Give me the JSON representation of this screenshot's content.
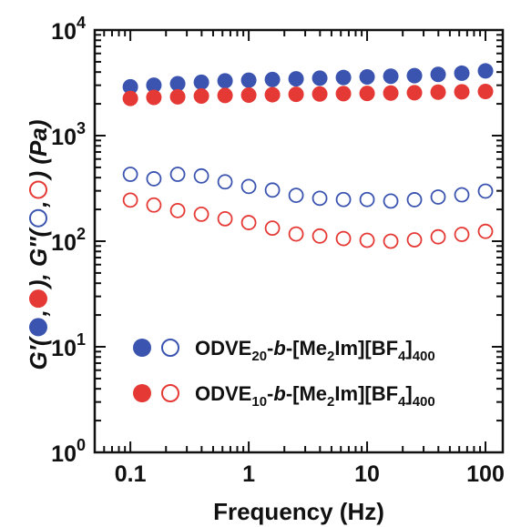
{
  "chart_data": {
    "type": "scatter",
    "xscale": "log",
    "yscale": "log",
    "xlim": [
      0.05,
      140
    ],
    "ylim": [
      1,
      10000
    ],
    "grid": false,
    "legend_position": "bottom-right",
    "xlabel": "Frequency (Hz)",
    "ylabel": {
      "g1": "G′(",
      "g2": ",",
      "g3": "), G″(",
      "g4": ",",
      "g5": ") (Pa)"
    },
    "x_tick_labels": [
      {
        "value": 0.1,
        "label": "0.1"
      },
      {
        "value": 1,
        "label": "1"
      },
      {
        "value": 10,
        "label": "10"
      },
      {
        "value": 100,
        "label": "100"
      }
    ],
    "y_tick_labels": [
      {
        "value": 1,
        "base": "10",
        "exp": "0"
      },
      {
        "value": 10,
        "base": "10",
        "exp": "1"
      },
      {
        "value": 100,
        "base": "10",
        "exp": "2"
      },
      {
        "value": 1000,
        "base": "10",
        "exp": "3"
      },
      {
        "value": 10000,
        "base": "10",
        "exp": "4"
      }
    ],
    "x": [
      0.1,
      0.158,
      0.251,
      0.398,
      0.631,
      1.0,
      1.585,
      2.512,
      3.981,
      6.31,
      10.0,
      15.85,
      25.12,
      39.81,
      63.1,
      100.0
    ],
    "series": [
      {
        "legend_id": "odve20",
        "quantity": "G'",
        "filled": true,
        "color": "#3b54b0",
        "values": [
          2900,
          3000,
          3100,
          3200,
          3300,
          3350,
          3400,
          3450,
          3500,
          3550,
          3600,
          3650,
          3700,
          3800,
          3900,
          4100
        ]
      },
      {
        "legend_id": "odve10",
        "quantity": "G'",
        "filled": true,
        "color": "#e53935",
        "values": [
          2250,
          2300,
          2330,
          2370,
          2400,
          2420,
          2440,
          2460,
          2480,
          2500,
          2510,
          2530,
          2550,
          2580,
          2600,
          2620
        ]
      },
      {
        "legend_id": "odve20",
        "quantity": "G\"",
        "filled": false,
        "color": "#3b54b0",
        "values": [
          430,
          390,
          430,
          415,
          365,
          330,
          305,
          272,
          255,
          248,
          248,
          240,
          247,
          262,
          275,
          298
        ]
      },
      {
        "legend_id": "odve10",
        "quantity": "G\"",
        "filled": false,
        "color": "#e53935",
        "values": [
          245,
          220,
          195,
          180,
          163,
          150,
          133,
          117,
          112,
          106,
          102,
          100,
          103,
          110,
          116,
          124
        ]
      }
    ],
    "legend": [
      {
        "id": "odve20",
        "color": "#3b54b0",
        "main": "ODVE",
        "sub1": "20",
        "mid1": "-",
        "italic": "b",
        "mid2": "-[Me",
        "sub2": "2",
        "mid3": "Im][BF",
        "sub3": "4",
        "mid4": "]",
        "sub4": "400"
      },
      {
        "id": "odve10",
        "color": "#e53935",
        "main": "ODVE",
        "sub1": "10",
        "mid1": "-",
        "italic": "b",
        "mid2": "-[Me",
        "sub2": "2",
        "mid3": "Im][BF",
        "sub3": "4",
        "mid4": "]",
        "sub4": "400"
      }
    ]
  }
}
